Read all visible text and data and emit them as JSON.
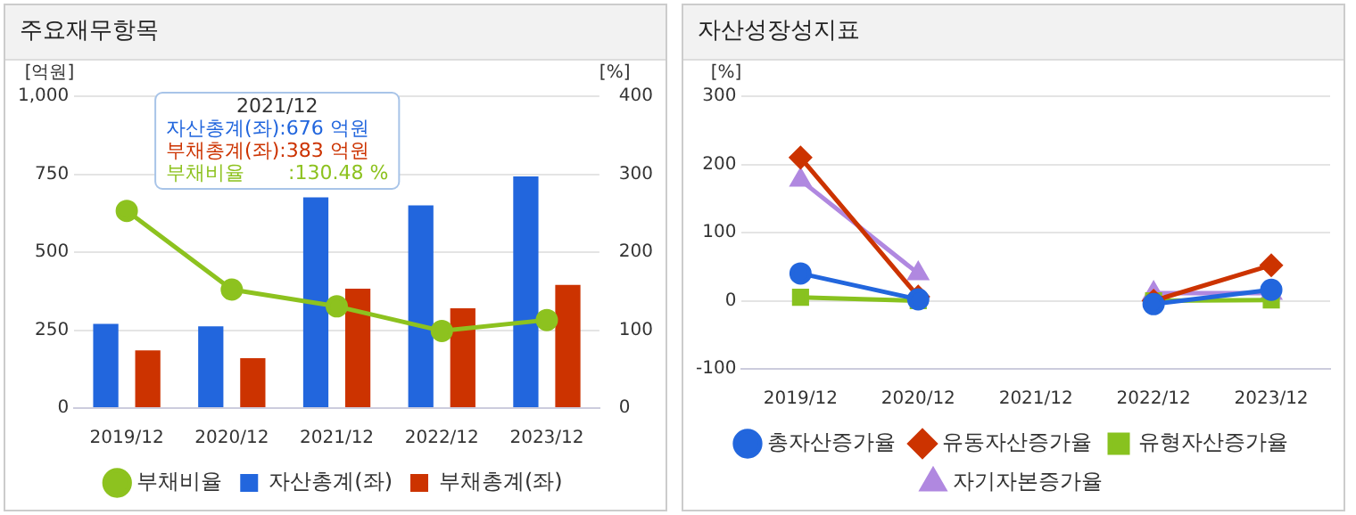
{
  "chart_data": [
    {
      "type": "bar",
      "title": "주요재무항목",
      "categories": [
        "2019/12",
        "2020/12",
        "2021/12",
        "2022/12",
        "2023/12"
      ],
      "ylabel": "[억원]",
      "y2label": "[%]",
      "ylim": [
        0,
        1000
      ],
      "yticks": [
        0,
        250,
        500,
        750,
        {
          "value": 1000,
          "label": "1,000"
        }
      ],
      "y2lim": [
        0,
        400
      ],
      "y2ticks": [
        0,
        100,
        200,
        300,
        400
      ],
      "grid": "y",
      "legend": "bottom",
      "series": [
        {
          "name": "자산총계(좌)",
          "color": "#2266dd",
          "values": [
            270,
            262,
            676,
            650,
            743
          ]
        },
        {
          "name": "부채총계(좌)",
          "color": "#cc3300",
          "values": [
            185,
            160,
            383,
            320,
            395
          ]
        },
        {
          "name": "부채비율",
          "type": "line",
          "axis": "y2",
          "color": "#8dc21f",
          "marker": "circle",
          "values": [
            253,
            152,
            130.48,
            99,
            113
          ]
        }
      ],
      "annotations": [
        "2021/12",
        "자산총계(좌):676 억원",
        "부채총계(좌):383 억원",
        "부채비율       :130.48 %"
      ]
    },
    {
      "type": "line",
      "title": "자산성장성지표",
      "categories": [
        "2019/12",
        "2020/12",
        "2021/12",
        "2022/12",
        "2023/12"
      ],
      "ylabel": "[%]",
      "ylim": [
        -100,
        300
      ],
      "yticks": [
        -100,
        0,
        100,
        200,
        300
      ],
      "grid": "y",
      "legend": "bottom",
      "series": [
        {
          "name": "총자산증가율",
          "color": "#2266dd",
          "marker": "circle",
          "values": [
            40,
            2,
            null,
            -5,
            16
          ]
        },
        {
          "name": "유동자산증가율",
          "color": "#cc3300",
          "marker": "diamond",
          "values": [
            210,
            6,
            null,
            0,
            52
          ]
        },
        {
          "name": "유형자산증가율",
          "color": "#88c21f",
          "marker": "square",
          "values": [
            5,
            0,
            null,
            0,
            1
          ]
        },
        {
          "name": "자기자본증가율",
          "color": "#b088e0",
          "marker": "triangle",
          "values": [
            177,
            40,
            null,
            11,
            11
          ]
        }
      ]
    }
  ]
}
